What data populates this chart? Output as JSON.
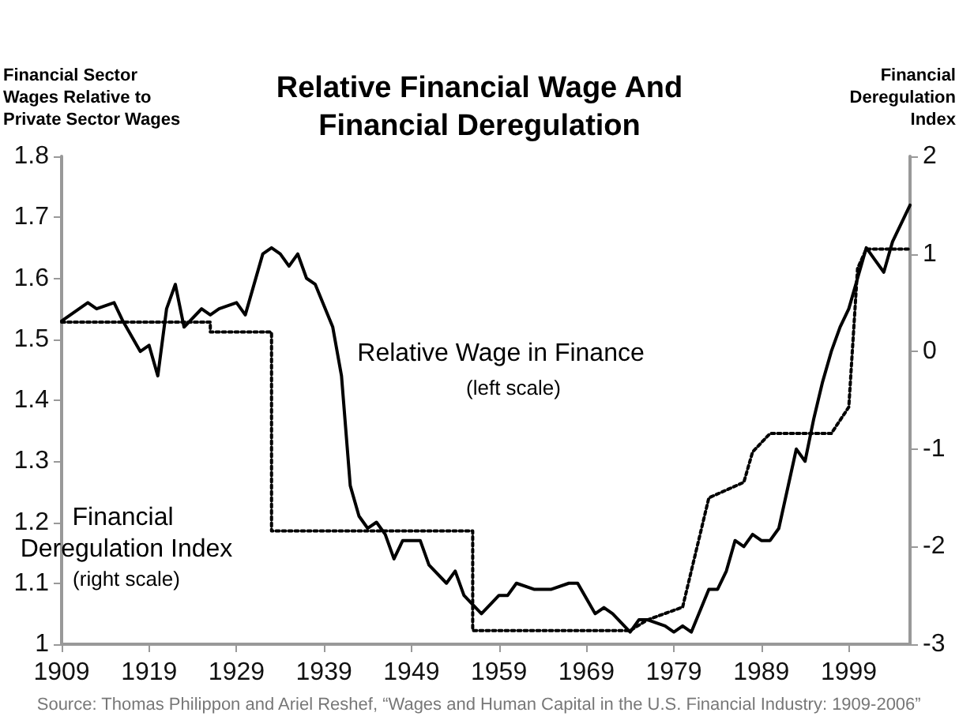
{
  "chart_data": {
    "type": "line",
    "title": "Relative Financial Wage And\nFinancial Deregulation",
    "ylabel": "Financial Sector\nWages Relative to\nPrivate Sector Wages",
    "y2label": "Financial\nDeregulation\nIndex",
    "annotations": [
      "(left scale)",
      "(right scale)",
      "Source: Thomas Philippon and Ariel Reshef, “Wages and Human Capital in the U.S. Financial Industry: 1909-2006”"
    ],
    "xlim": [
      1909,
      2006
    ],
    "xticks": [
      1909,
      1919,
      1929,
      1939,
      1949,
      1959,
      1969,
      1979,
      1989,
      1999
    ],
    "ylim": [
      1,
      1.8
    ],
    "yticks": [
      1,
      1.1,
      1.2,
      1.3,
      1.4,
      1.5,
      1.6,
      1.7,
      1.8
    ],
    "y2lim": [
      -3,
      2
    ],
    "y2ticks": [
      -3,
      -2,
      -1,
      0,
      1,
      2
    ],
    "grid": false,
    "legend": false,
    "marker": "none",
    "series": [
      {
        "name": "Relative Wage in Finance",
        "color": "#000000",
        "line_style": "solid",
        "x": [
          1909,
          1911,
          1912,
          1913,
          1915,
          1916,
          1918,
          1919,
          1920,
          1921,
          1922,
          1923,
          1925,
          1926,
          1927,
          1929,
          1930,
          1932,
          1933,
          1934,
          1935,
          1936,
          1937,
          1938,
          1940,
          1941,
          1942,
          1943,
          1944,
          1945,
          1946,
          1947,
          1948,
          1950,
          1951,
          1953,
          1954,
          1955,
          1957,
          1959,
          1960,
          1961,
          1963,
          1965,
          1967,
          1968,
          1970,
          1971,
          1972,
          1974,
          1975,
          1976,
          1978,
          1979,
          1980,
          1981,
          1983,
          1984,
          1985,
          1986,
          1987,
          1988,
          1989,
          1990,
          1991,
          1993,
          1994,
          1995,
          1996,
          1997,
          1998,
          1999,
          2000,
          2001,
          2002,
          2003,
          2004,
          2006
        ],
        "values": [
          1.53,
          1.55,
          1.56,
          1.55,
          1.56,
          1.53,
          1.48,
          1.49,
          1.44,
          1.55,
          1.59,
          1.52,
          1.55,
          1.54,
          1.55,
          1.56,
          1.54,
          1.64,
          1.65,
          1.64,
          1.62,
          1.64,
          1.6,
          1.59,
          1.52,
          1.44,
          1.26,
          1.21,
          1.19,
          1.2,
          1.18,
          1.14,
          1.17,
          1.17,
          1.13,
          1.1,
          1.12,
          1.08,
          1.05,
          1.08,
          1.08,
          1.1,
          1.09,
          1.09,
          1.1,
          1.1,
          1.05,
          1.06,
          1.05,
          1.02,
          1.04,
          1.04,
          1.03,
          1.02,
          1.03,
          1.02,
          1.09,
          1.09,
          1.12,
          1.17,
          1.16,
          1.18,
          1.17,
          1.17,
          1.19,
          1.32,
          1.3,
          1.37,
          1.43,
          1.48,
          1.52,
          1.55,
          1.6,
          1.65,
          1.63,
          1.61,
          1.66,
          1.72
        ]
      },
      {
        "name": "Financial Deregulation Index",
        "color": "#000000",
        "line_style": "dotted",
        "axis": "y2",
        "x": [
          1909,
          1926,
          1926,
          1933,
          1933,
          1956,
          1956,
          1974,
          1976,
          1980,
          1983,
          1987,
          1988,
          1990,
          1997,
          1999,
          2000,
          2001,
          2006
        ],
        "values": [
          0.3,
          0.3,
          0.2,
          0.2,
          -1.84,
          -1.84,
          -2.86,
          -2.86,
          -2.75,
          -2.62,
          -1.5,
          -1.34,
          -1.03,
          -0.84,
          -0.84,
          -0.57,
          0.85,
          1.05,
          1.05
        ]
      }
    ]
  }
}
